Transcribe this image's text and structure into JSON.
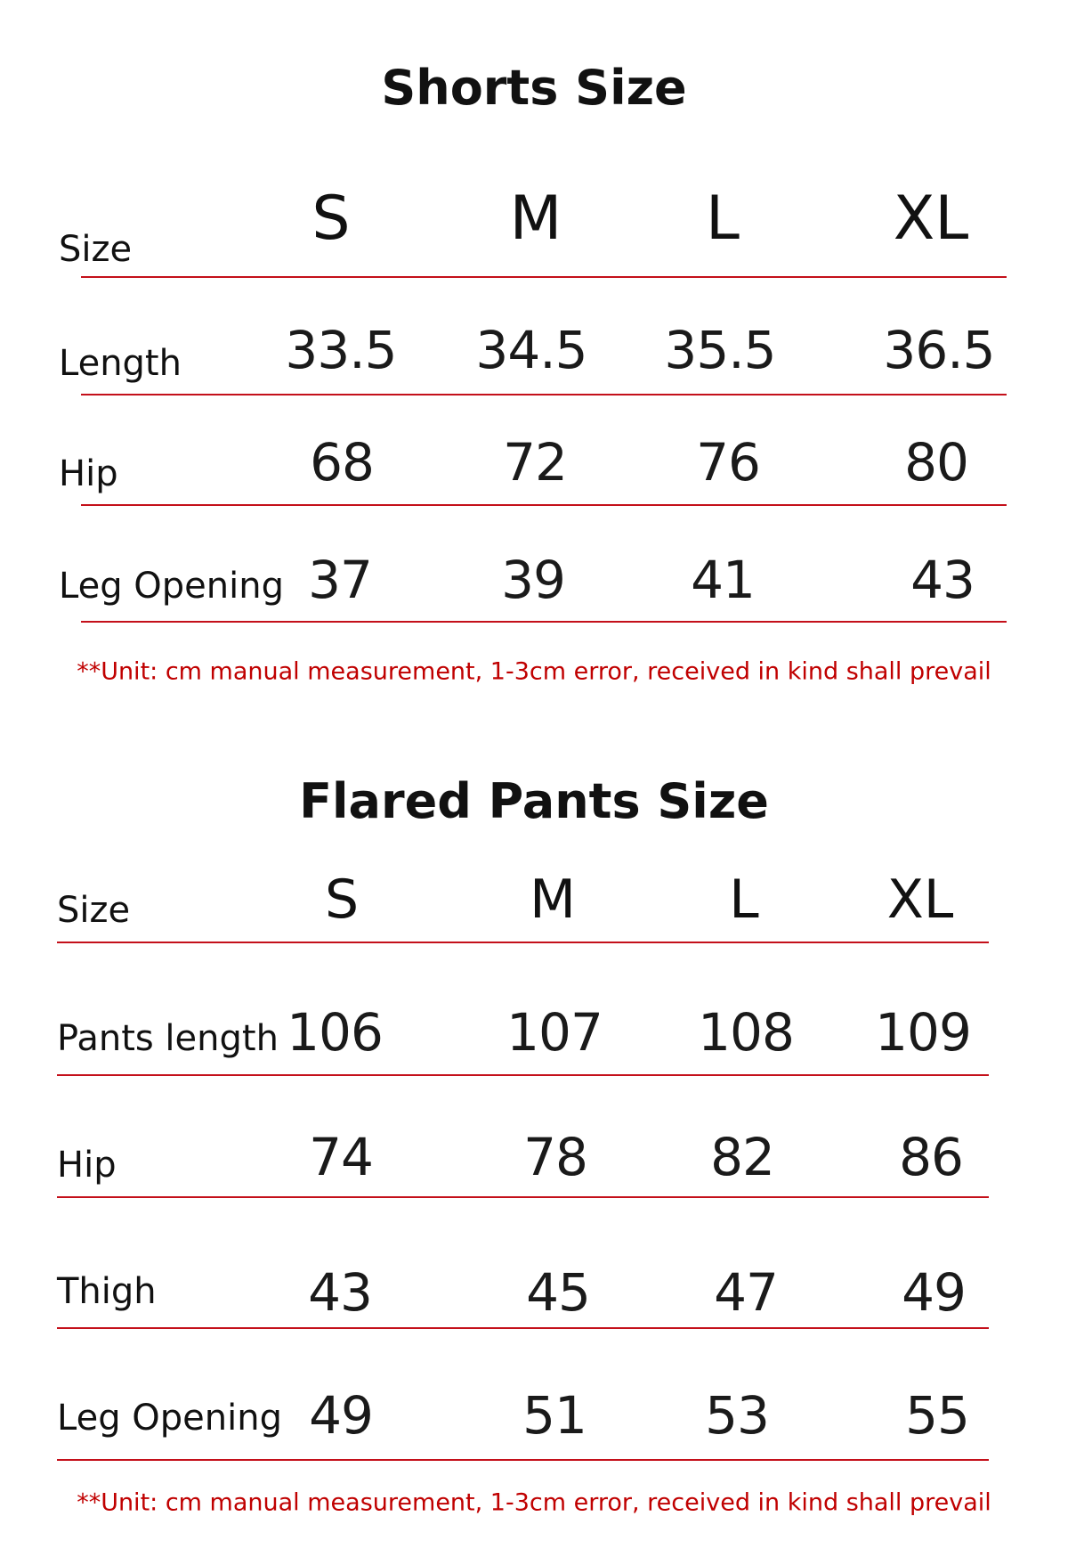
{
  "shorts": {
    "title": "Shorts Size",
    "header": {
      "label": "Size",
      "sizes": [
        "S",
        "M",
        "L",
        "XL"
      ]
    },
    "rows": [
      {
        "label": "Length",
        "values": [
          "33.5",
          "34.5",
          "35.5",
          "36.5"
        ]
      },
      {
        "label": "Hip",
        "values": [
          "68",
          "72",
          "76",
          "80"
        ]
      },
      {
        "label": "Leg Opening",
        "values": [
          "37",
          "39",
          "41",
          "43"
        ]
      }
    ],
    "note": "**Unit: cm manual measurement, 1-3cm error, received in kind shall prevail"
  },
  "pants": {
    "title": "Flared Pants Size",
    "header": {
      "label": "Size",
      "sizes": [
        "S",
        "M",
        "L",
        "XL"
      ]
    },
    "rows": [
      {
        "label": "Pants length",
        "values": [
          "106",
          "107",
          "108",
          "109"
        ]
      },
      {
        "label": "Hip",
        "values": [
          "74",
          "78",
          "82",
          "86"
        ]
      },
      {
        "label": "Thigh",
        "values": [
          "43",
          "45",
          "47",
          "49"
        ]
      },
      {
        "label": "Leg Opening",
        "values": [
          "49",
          "51",
          "53",
          "55"
        ]
      }
    ],
    "note": "**Unit: cm manual measurement, 1-3cm error, received in kind shall prevail"
  },
  "colors": {
    "rule": "#c4101a",
    "note": "#c00000"
  }
}
